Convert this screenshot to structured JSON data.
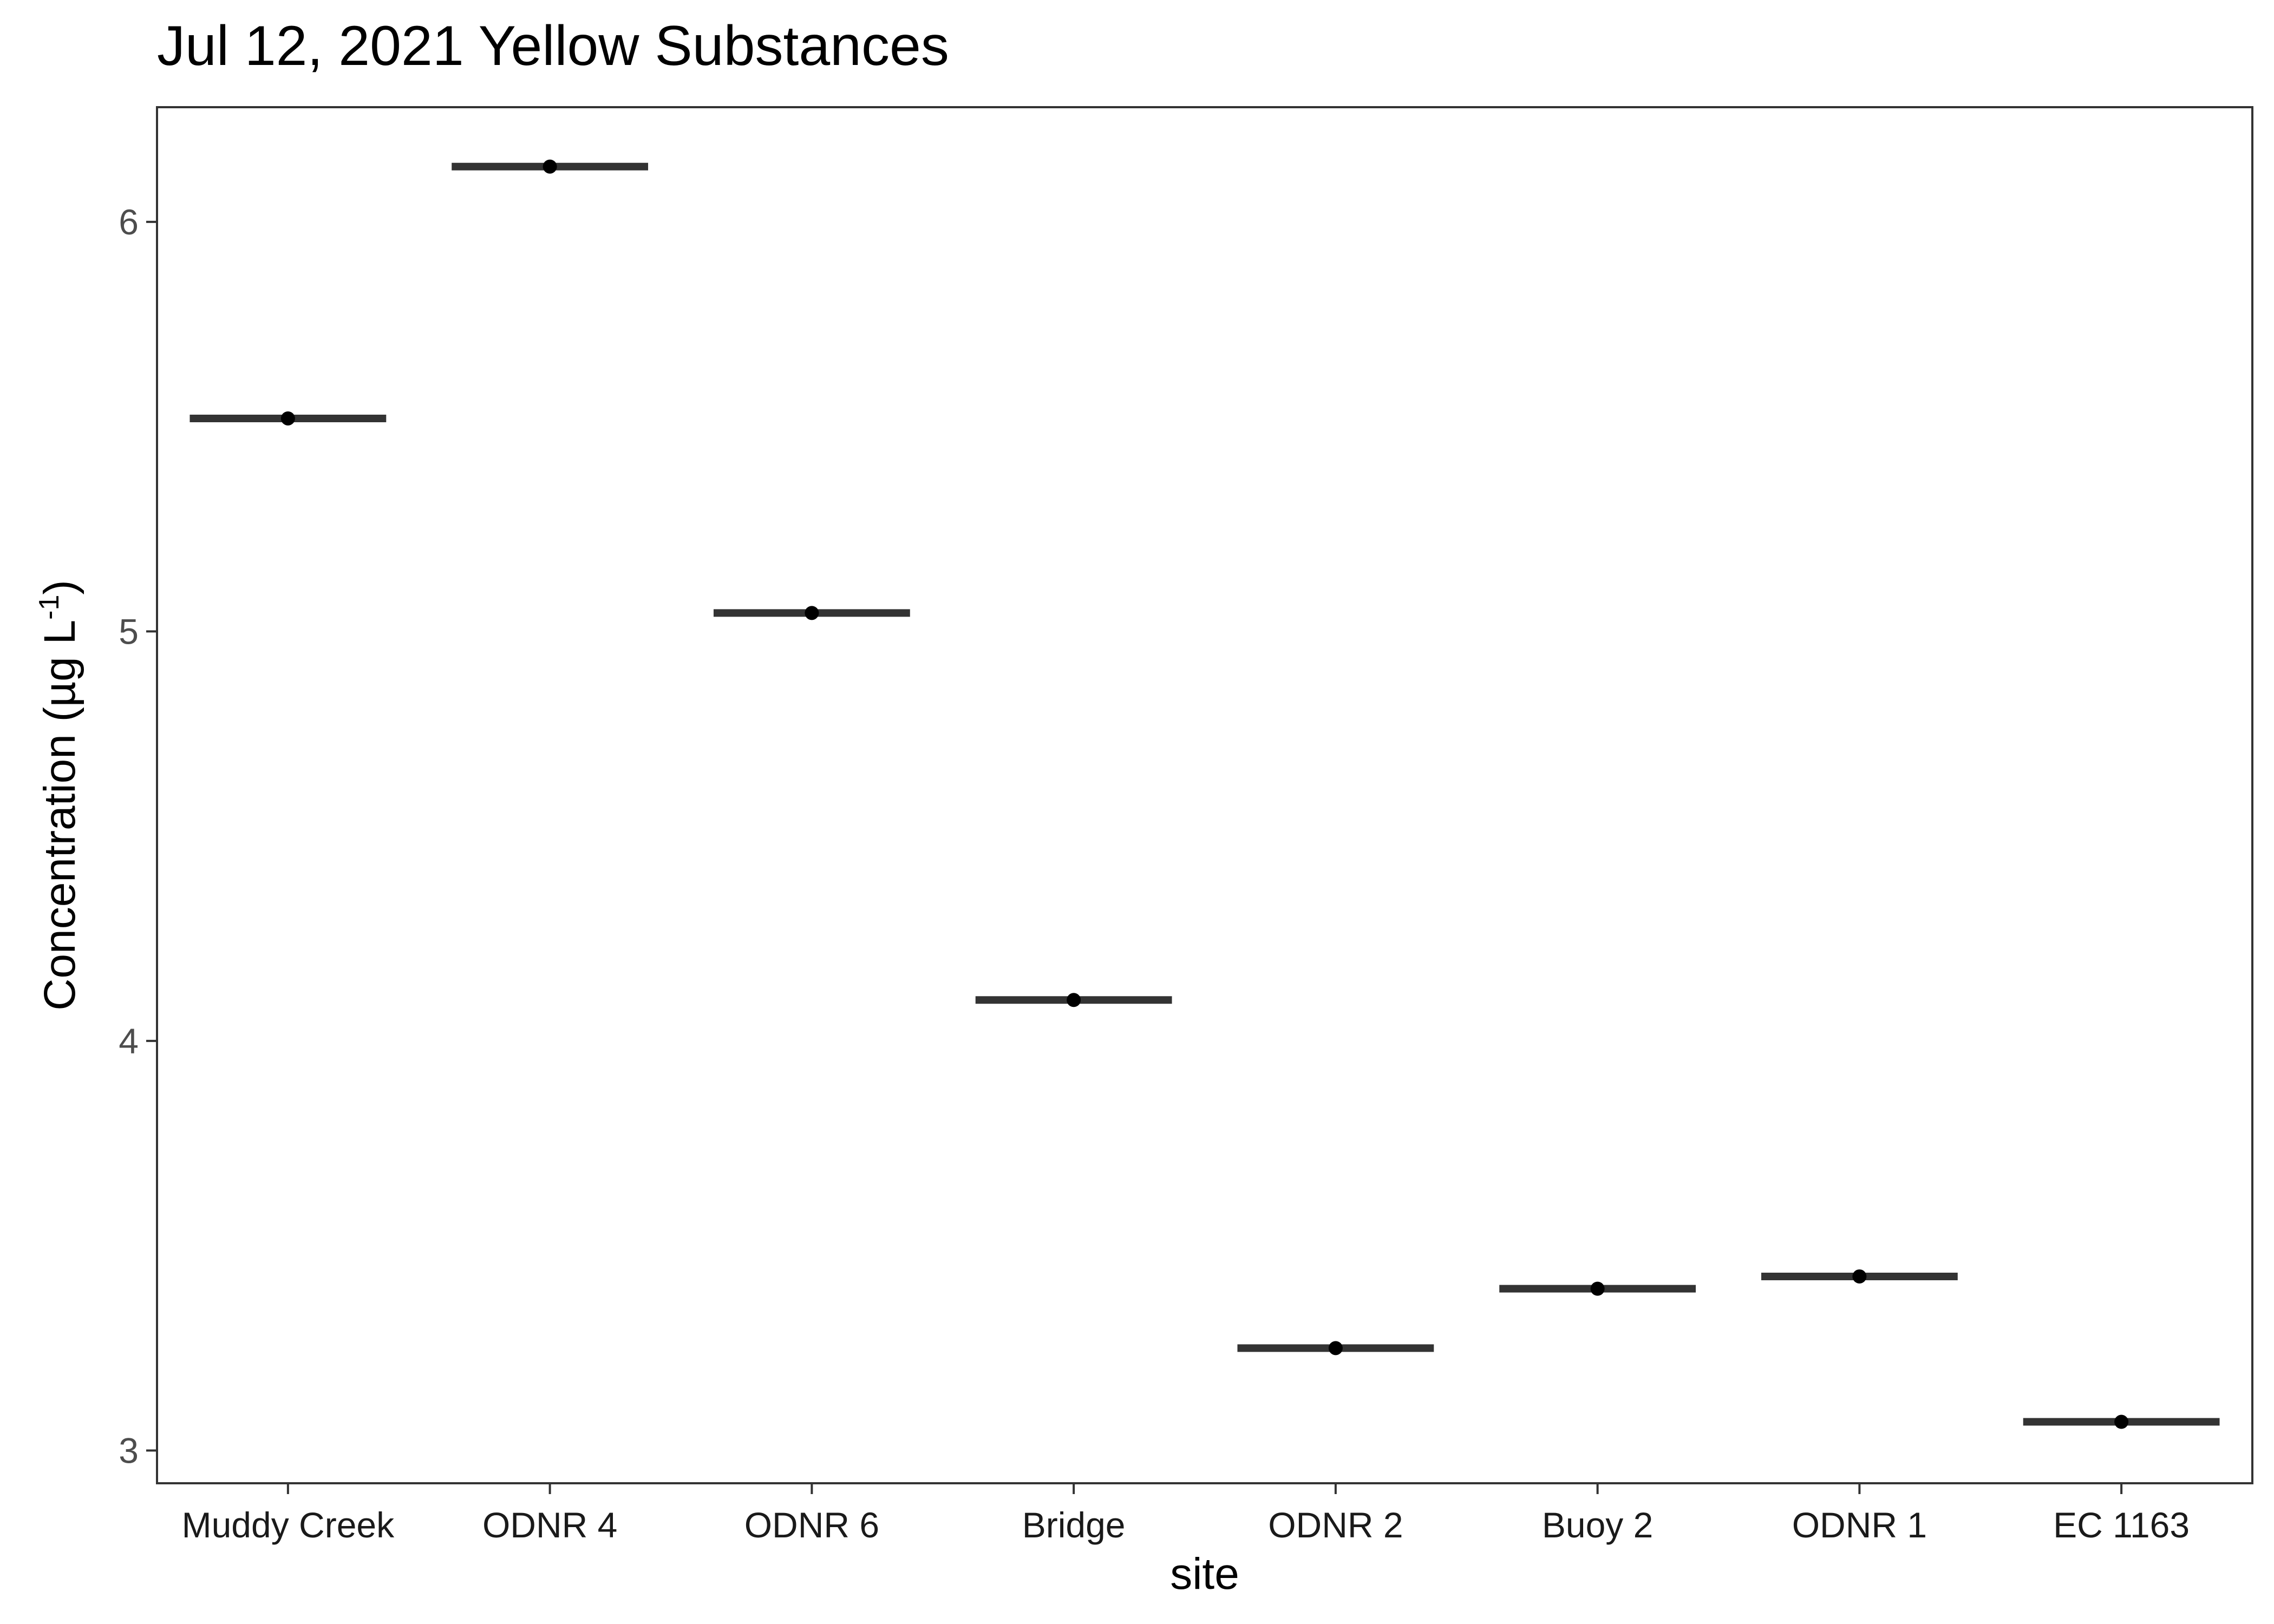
{
  "chart_data": {
    "type": "scatter",
    "title": "Jul 12, 2021 Yellow Substances",
    "xlabel": "site",
    "ylabel": "Concentration (µg L",
    "ylabel_superscript": "-1",
    "ylabel_close": ")",
    "categories": [
      "Muddy Creek",
      "ODNR 4",
      "ODNR 6",
      "Bridge",
      "ODNR 2",
      "Buoy 2",
      "ODNR 1",
      "EC 1163"
    ],
    "values": [
      5.52,
      6.135,
      5.045,
      4.1,
      3.25,
      3.395,
      3.425,
      3.07
    ],
    "ylim": [
      2.92,
      6.28
    ],
    "yticks": [
      3,
      4,
      5,
      6
    ],
    "grid": false,
    "legend": "none"
  },
  "colors": {
    "background": "#ffffff",
    "panel_border": "#333333",
    "mean_bar": "#333333",
    "point": "#000000"
  }
}
